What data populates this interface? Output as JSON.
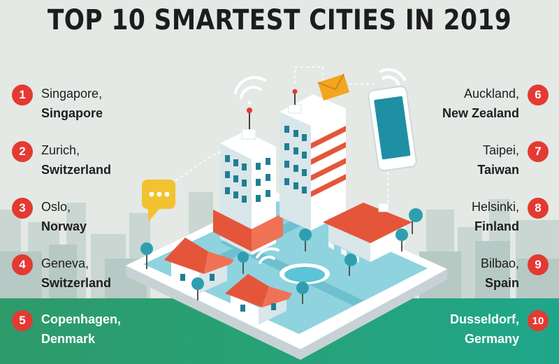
{
  "title": "TOP 10 SMARTEST CITIES IN 2019",
  "colors": {
    "badge": "#e33a33",
    "band": "#27a277",
    "background": "#e4e9e5",
    "building": "#ffffff",
    "window": "#1f7f93",
    "roof": "#e5553a"
  },
  "cities": [
    {
      "rank": "1",
      "city": "Singapore,",
      "country": "Singapore"
    },
    {
      "rank": "2",
      "city": "Zurich,",
      "country": "Switzerland"
    },
    {
      "rank": "3",
      "city": "Oslo,",
      "country": "Norway"
    },
    {
      "rank": "4",
      "city": "Geneva,",
      "country": "Switzerland"
    },
    {
      "rank": "5",
      "city": "Copenhagen,",
      "country": "Denmark"
    },
    {
      "rank": "6",
      "city": "Auckland,",
      "country": "New Zealand"
    },
    {
      "rank": "7",
      "city": "Taipei,",
      "country": "Taiwan"
    },
    {
      "rank": "8",
      "city": "Helsinki,",
      "country": "Finland"
    },
    {
      "rank": "9",
      "city": "Bilbao,",
      "country": "Spain"
    },
    {
      "rank": "10",
      "city": "Dusseldorf,",
      "country": "Germany"
    }
  ],
  "illustration": {
    "icons": [
      "wifi-icon",
      "envelope-icon",
      "smartphone-icon",
      "chat-bubble-icon",
      "tree-icon",
      "house-icon",
      "building-icon"
    ]
  }
}
